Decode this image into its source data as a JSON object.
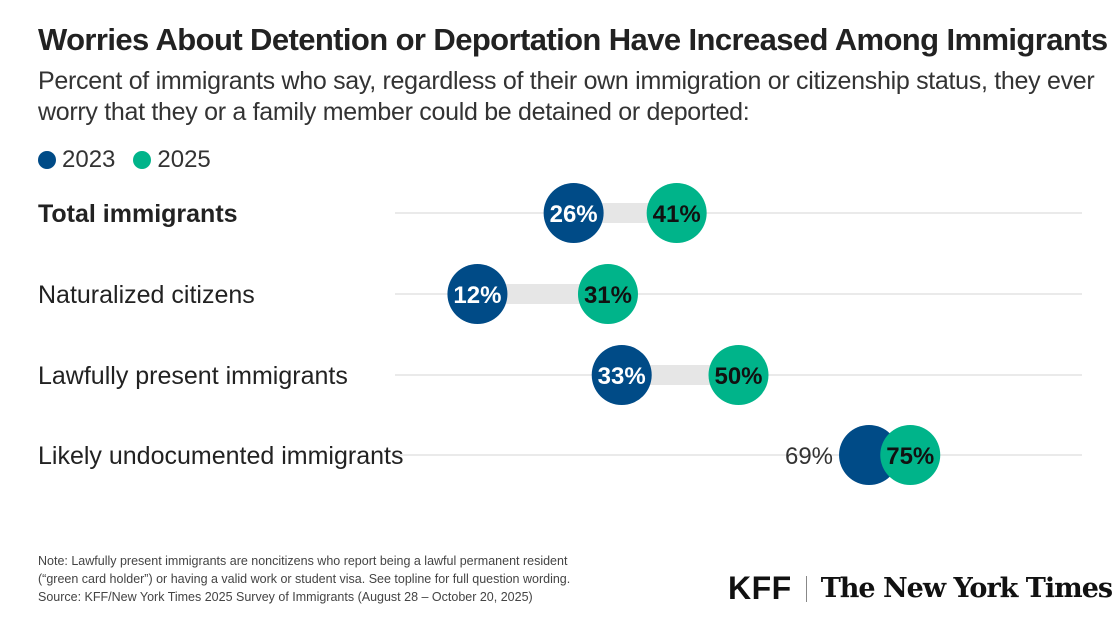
{
  "chart_data": {
    "type": "dumbbell",
    "title": "Worries About Detention or Deportation Have Increased Among Immigrants",
    "subtitle": "Percent of immigrants who say, regardless of their own immigration or citizenship status, they ever worry that they or a family member could be detained or deported:",
    "xlim": [
      0,
      100
    ],
    "grid": false,
    "legend_placement": "top-left",
    "categories": [
      "Total immigrants",
      "Naturalized citizens",
      "Lawfully present immigrants",
      "Likely undocumented immigrants"
    ],
    "category_bold": [
      true,
      false,
      false,
      false
    ],
    "series": [
      {
        "name": "2023",
        "color": "#004b87",
        "values": [
          26,
          12,
          33,
          69
        ],
        "labels": [
          "26%",
          "12%",
          "33%",
          "69%"
        ]
      },
      {
        "name": "2025",
        "color": "#00b48a",
        "values": [
          41,
          31,
          50,
          75
        ],
        "labels": [
          "41%",
          "31%",
          "50%",
          "75%"
        ]
      }
    ]
  },
  "footer": {
    "note_line1": "Note: Lawfully present immigrants are noncitizens who report being a lawful permanent resident",
    "note_line2": "(“green card holder”) or having a valid work or student visa. See topline for full question wording.",
    "source": "Source: KFF/New York Times 2025 Survey of Immigrants (August 28 – October 20, 2025)",
    "logo_kff": "KFF",
    "logo_nyt": "The New York Times"
  }
}
